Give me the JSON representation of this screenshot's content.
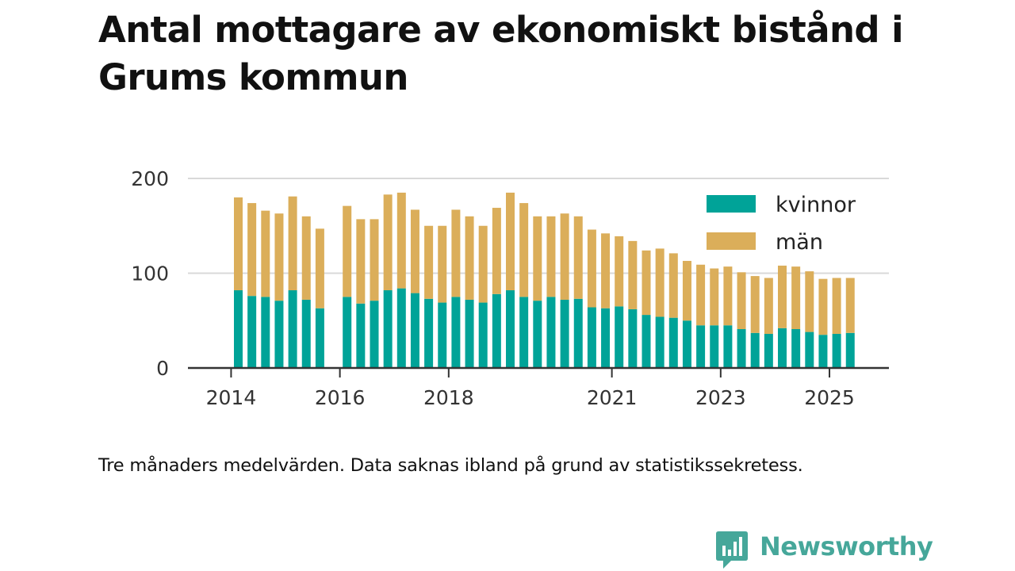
{
  "title": "Antal mottagare av ekonomiskt bistånd i Grums kommun",
  "footnote": "Tre månaders medelvärden. Data saknas ibland på grund av statistikssekretess.",
  "brand": {
    "name": "Newsworthy",
    "color": "#46a79a"
  },
  "chart_data": {
    "type": "bar",
    "stacked": true,
    "ylim": [
      0,
      200
    ],
    "yticks": [
      "0",
      "100",
      "200"
    ],
    "xticks": [
      {
        "label": "2014",
        "index": 0
      },
      {
        "label": "2016",
        "index": 8
      },
      {
        "label": "2018",
        "index": 16
      },
      {
        "label": "2021",
        "index": 28
      },
      {
        "label": "2023",
        "index": 36
      },
      {
        "label": "2025",
        "index": 44
      }
    ],
    "legend_position": "top-right",
    "series": [
      {
        "name": "kvinnor",
        "color": "#00a398",
        "values": [
          82,
          76,
          75,
          71,
          82,
          72,
          63,
          null,
          75,
          68,
          71,
          82,
          84,
          79,
          73,
          69,
          75,
          72,
          69,
          78,
          82,
          75,
          71,
          75,
          72,
          73,
          64,
          63,
          65,
          62,
          56,
          54,
          53,
          50,
          45,
          45,
          45,
          41,
          37,
          36,
          42,
          41,
          38,
          35,
          36,
          37
        ]
      },
      {
        "name": "män",
        "color": "#dbae5a",
        "values": [
          98,
          98,
          91,
          92,
          99,
          88,
          84,
          null,
          96,
          89,
          86,
          101,
          101,
          88,
          77,
          81,
          92,
          88,
          81,
          91,
          103,
          99,
          89,
          85,
          91,
          87,
          82,
          79,
          74,
          72,
          68,
          72,
          68,
          63,
          64,
          60,
          62,
          60,
          60,
          59,
          66,
          66,
          64,
          59,
          59,
          58
        ]
      }
    ]
  }
}
